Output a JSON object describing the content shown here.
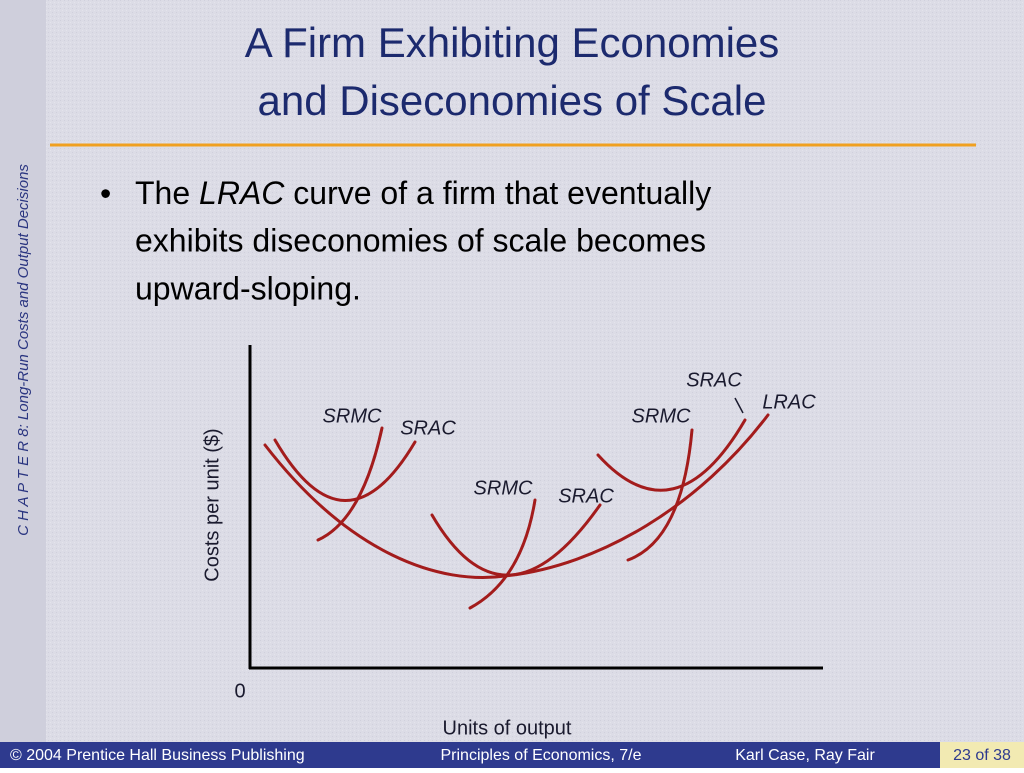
{
  "sidebar": {
    "text": "C H A P T E R  8:  Long-Run Costs and Output Decisions"
  },
  "header": {
    "title_lines": [
      "A Firm Exhibiting Economies",
      "and Diseconomies of Scale"
    ]
  },
  "bullet": {
    "lines": [
      {
        "before": "The",
        "emphasis": "LRAC",
        "after": "curve of a firm that eventually"
      },
      {
        "text": "exhibits diseconomies of scale becomes"
      },
      {
        "text": "upward-sloping."
      }
    ]
  },
  "diagram": {
    "y_axis_label": "Costs per unit ($)",
    "x_axis_label": "Units of output",
    "origin": "0",
    "curve_labels": [
      "SRMC",
      "SRAC",
      "SRMC",
      "SRAC",
      "SRAC",
      "SRMC",
      "LRAC"
    ]
  },
  "footer": {
    "publisher": "© 2004 Prentice Hall Business Publishing",
    "book": "Principles of Economics, 7/e",
    "authors": "Karl Case, Ray Fair",
    "page": "23 of 38"
  }
}
